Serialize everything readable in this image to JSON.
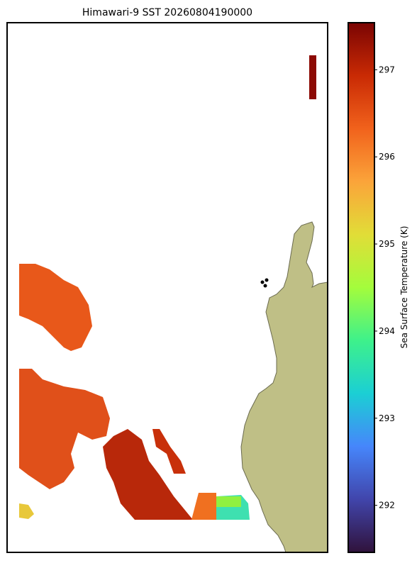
{
  "title": "Himawari-9 SST 20260804190000",
  "colorbar": {
    "label": "Sea Surface Temperature (K)",
    "lim": [
      291.46,
      297.54
    ],
    "ticks": [
      292,
      293,
      294,
      295,
      296,
      297
    ]
  }
}
